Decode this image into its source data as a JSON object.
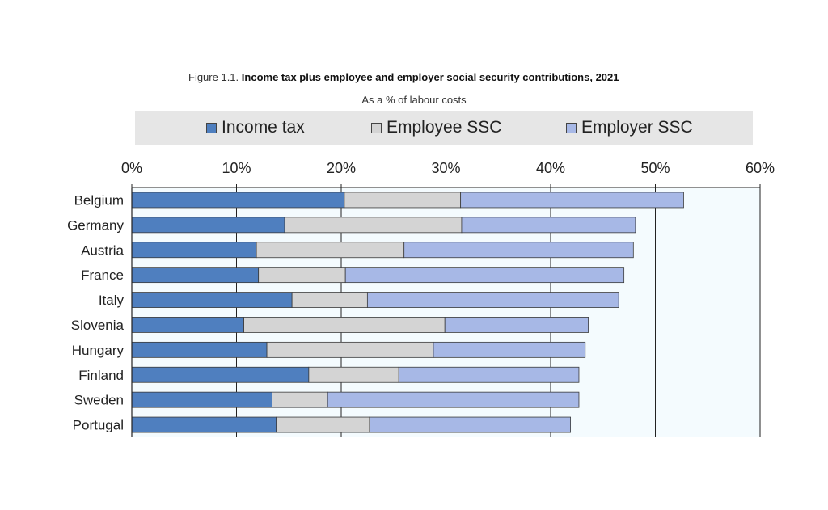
{
  "caption": {
    "prefix": "Figure 1.1.",
    "title": "Income tax plus employee and employer social security contributions, 2021"
  },
  "subtitle": "As a % of labour costs",
  "legend": [
    {
      "label": "Income tax",
      "color": "#4f7fbf"
    },
    {
      "label": "Employee SSC",
      "color": "#d4d4d4"
    },
    {
      "label": "Employer SSC",
      "color": "#a7b8e6"
    }
  ],
  "chart_data": {
    "type": "bar",
    "orientation": "horizontal",
    "stacked": true,
    "title": "Income tax plus employee and employer social security contributions, 2021",
    "subtitle": "As a % of labour costs",
    "categories": [
      "Belgium",
      "Germany",
      "Austria",
      "France",
      "Italy",
      "Slovenia",
      "Hungary",
      "Finland",
      "Sweden",
      "Portugal"
    ],
    "series": [
      {
        "name": "Income tax",
        "color": "#4f7fbf",
        "values": [
          20.3,
          14.6,
          11.9,
          12.1,
          15.3,
          10.7,
          12.9,
          16.9,
          13.4,
          13.8
        ]
      },
      {
        "name": "Employee SSC",
        "color": "#d4d4d4",
        "values": [
          11.1,
          16.9,
          14.1,
          8.3,
          7.2,
          19.2,
          15.9,
          8.6,
          5.3,
          8.9
        ]
      },
      {
        "name": "Employer SSC",
        "color": "#a7b8e6",
        "values": [
          21.3,
          16.6,
          21.9,
          26.6,
          24.0,
          13.7,
          14.5,
          17.2,
          24.0,
          19.2
        ]
      }
    ],
    "xlim": [
      0,
      60
    ],
    "x_ticks": [
      "0%",
      "10%",
      "20%",
      "30%",
      "40%",
      "50%",
      "60%"
    ],
    "x_tick_values": [
      0,
      10,
      20,
      30,
      40,
      50,
      60
    ],
    "grid": true,
    "legend_position": "top",
    "plot_background": "#f4fbfe"
  }
}
